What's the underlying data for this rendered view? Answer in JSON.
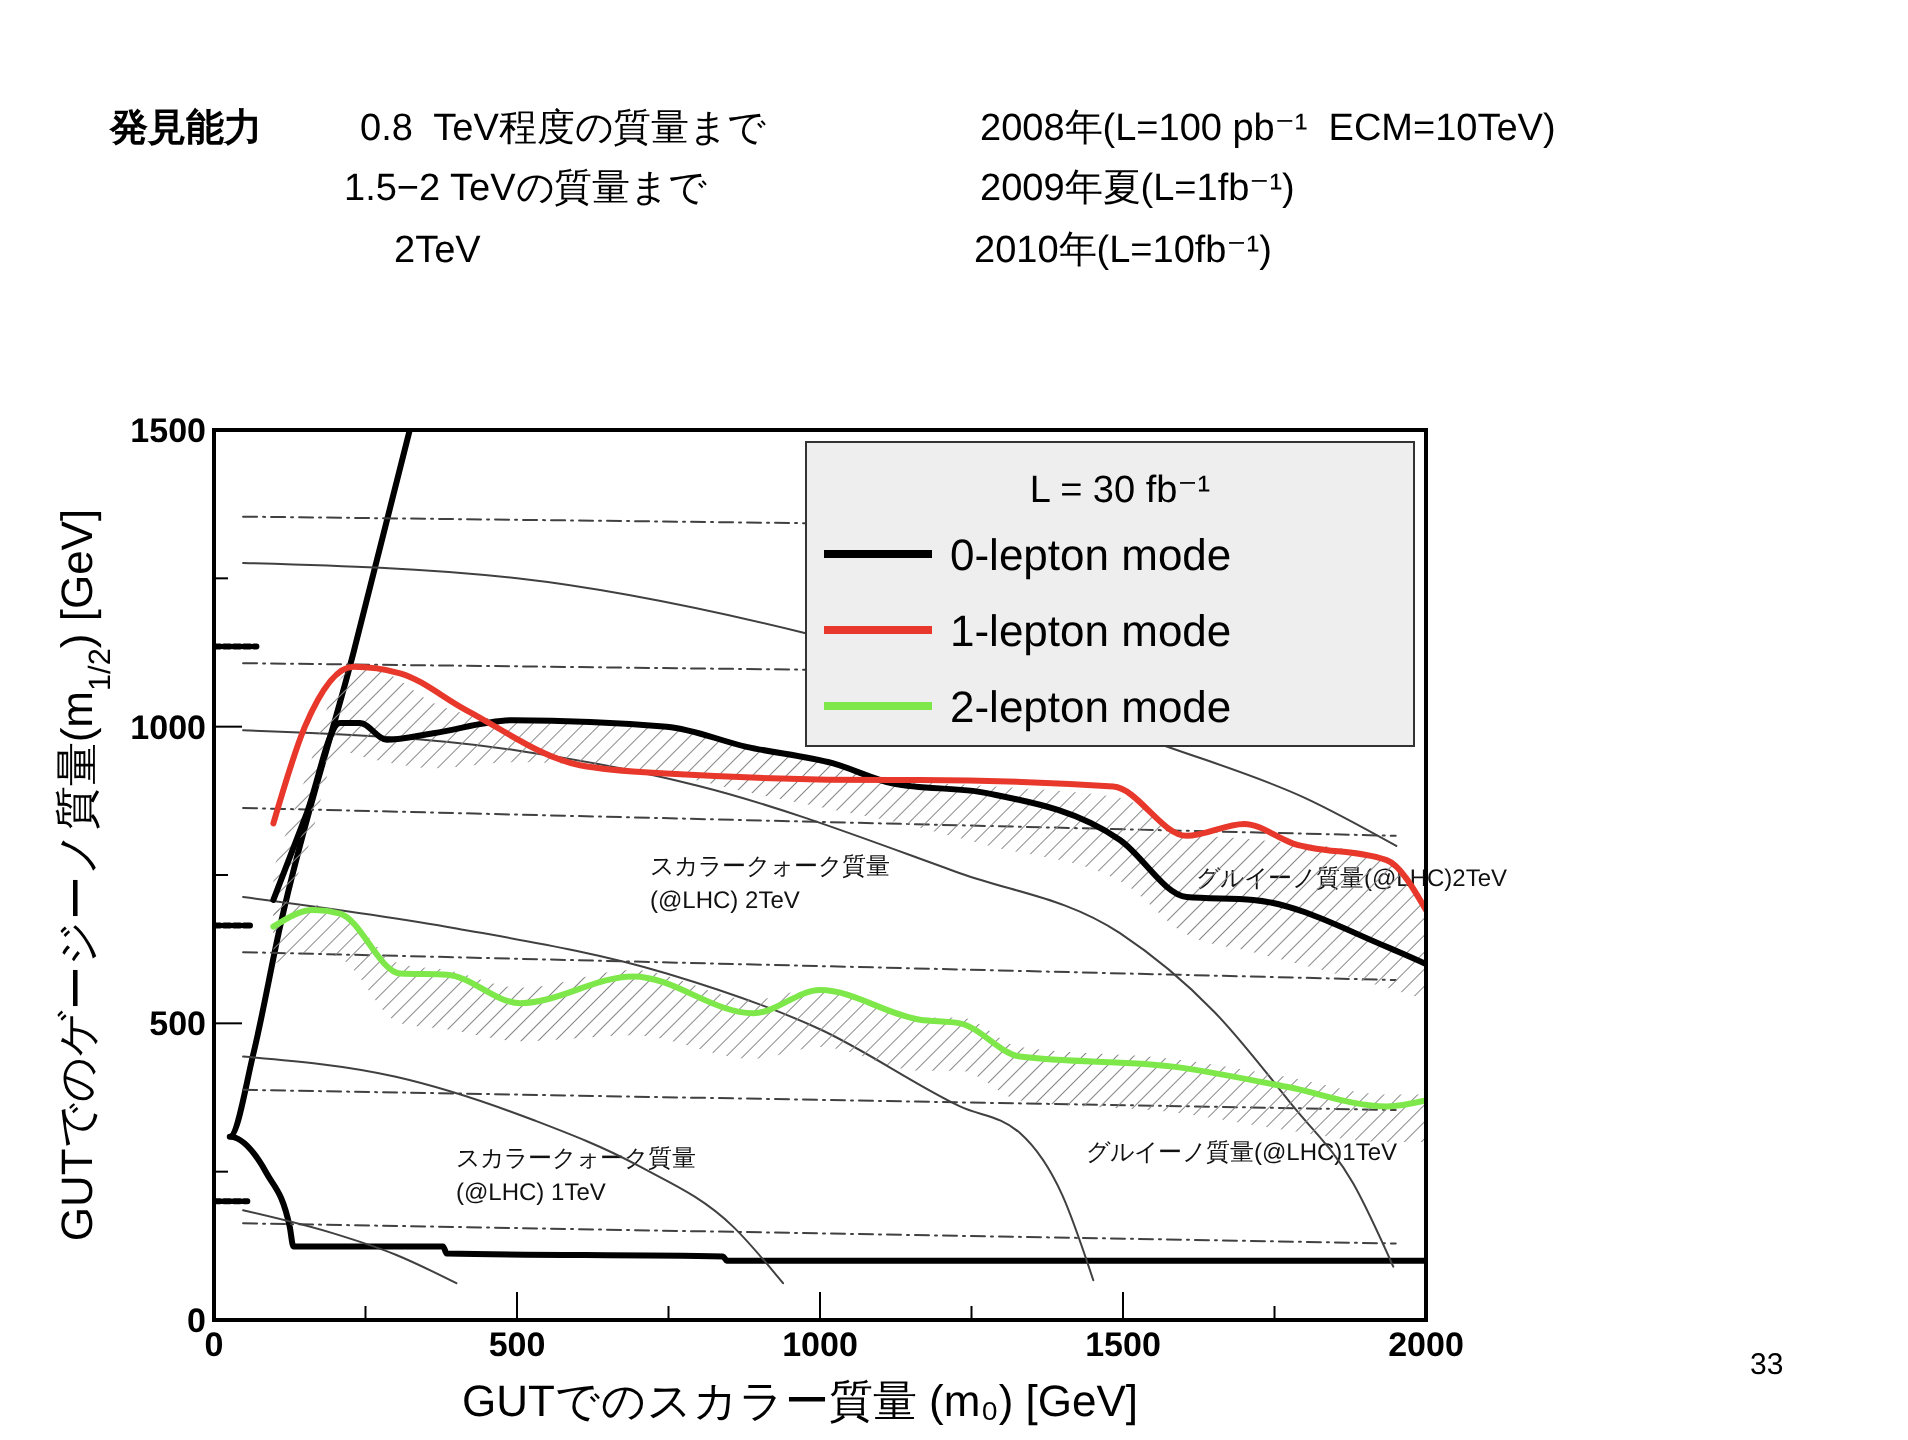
{
  "chart_data": {
    "type": "line",
    "title": "発見能力",
    "xlabel": "GUTでのスカラー質量 (m₀) [GeV]",
    "ylabel": "GUTでのゲージーノ質量(m$_{1/2}$) [GeV]",
    "legend_title": "L = 30 fb⁻¹",
    "legend": "top right",
    "xlim": [
      0,
      2000
    ],
    "ylim": [
      0,
      1500
    ],
    "xticks": [
      0,
      {
        "value": 250,
        "label": null
      },
      500,
      {
        "value": 750,
        "label": null
      },
      1000,
      {
        "value": 1250,
        "label": null
      },
      1500,
      {
        "value": 1750,
        "label": null
      },
      2000
    ],
    "yticks": [
      0,
      {
        "value": 250,
        "label": null
      },
      500,
      {
        "value": 750,
        "label": null
      },
      1000,
      {
        "value": 1250,
        "label": null
      },
      1500
    ],
    "series": [
      {
        "color": "#000000",
        "x": [
          323,
          230,
          109,
          65,
          26,
          87,
          125,
          131,
          378,
          384,
          840,
          846,
          2000
        ],
        "values": [
          1500,
          1124,
          663,
          449,
          309,
          247,
          157,
          124,
          124,
          112,
          107,
          100,
          100
        ]
      },
      {
        "color": "#404040",
        "x": [
          48,
          500,
          978,
          1571,
          1800,
          1951
        ],
        "values": [
          1276,
          1250,
          1157,
          967,
          880,
          799
        ]
      },
      {
        "color": "#404040",
        "x": [
          48,
          500,
          800,
          1231,
          1495,
          1650,
          1781,
          1880,
          1946
        ],
        "values": [
          994,
          960,
          900,
          753,
          652,
          520,
          360,
          230,
          90
        ]
      },
      {
        "color": "#404040",
        "x": [
          48,
          400,
          747,
          1000,
          1231,
          1330,
          1400,
          1451
        ],
        "values": [
          713,
          660,
          584,
          490,
          360,
          315,
          210,
          67
        ]
      },
      {
        "color": "#404040",
        "x": [
          48,
          300,
          527,
          700,
          857,
          939
        ],
        "values": [
          444,
          410,
          337,
          260,
          157,
          62
        ]
      },
      {
        "color": "#404040",
        "x": [
          48,
          197,
          300,
          400
        ],
        "values": [
          185,
          146,
          110,
          62
        ]
      },
      {
        "color": "#404040",
        "line_style": "dashed",
        "x": [
          48,
          975
        ],
        "values": [
          1354,
          1343
        ]
      },
      {
        "color": "#404040",
        "line_style": "dashed",
        "x": [
          48,
          975
        ],
        "values": [
          1107,
          1096
        ]
      },
      {
        "color": "#404040",
        "line_style": "dashed",
        "x": [
          48,
          1950
        ],
        "values": [
          863,
          816
        ]
      },
      {
        "color": "#404040",
        "line_style": "dashed",
        "x": [
          48,
          1950
        ],
        "values": [
          620,
          573
        ]
      },
      {
        "color": "#404040",
        "line_style": "dashed",
        "x": [
          48,
          1950
        ],
        "values": [
          388,
          354
        ]
      },
      {
        "color": "#404040",
        "line_style": "dashed",
        "x": [
          48,
          1950
        ],
        "values": [
          163,
          129
        ]
      },
      {
        "color": "#000000",
        "line_style": "dotted",
        "x": [
          0,
          70
        ],
        "values": [
          1135,
          1135
        ]
      },
      {
        "color": "#000000",
        "line_style": "dotted",
        "x": [
          0,
          60
        ],
        "values": [
          665,
          665
        ]
      },
      {
        "color": "#000000",
        "line_style": "dotted",
        "x": [
          0,
          55
        ],
        "values": [
          200,
          200
        ]
      },
      {
        "name": "0-lepton mode",
        "color": "#000000",
        "x": [
          98,
          153,
          208,
          241,
          285,
          362,
          494,
          747,
          879,
          1022,
          1121,
          1275,
          1495,
          1605,
          1715,
          1935,
          2000
        ],
        "values": [
          708,
          854,
          1006,
          1006,
          978,
          989,
          1011,
          1000,
          966,
          938,
          904,
          888,
          809,
          713,
          708,
          629,
          600
        ],
        "upper": [
          760,
          920,
          1080,
          1100,
          1090,
          1040,
          1010,
          1000,
          966,
          940,
          910,
          900,
          880,
          820,
          810,
          780,
          700
        ],
        "lower": [
          650,
          790,
          960,
          950,
          940,
          930,
          940,
          920,
          890,
          860,
          840,
          800,
          740,
          650,
          620,
          560,
          540
        ]
      },
      {
        "name": "1-lepton mode",
        "color": "#e8382c",
        "x": [
          98,
          150,
          230,
          307,
          416,
          604,
          746,
          1121,
          1165,
          1484,
          1605,
          1700,
          1781,
          1935,
          2000
        ],
        "values": [
          837,
          1000,
          1101,
          1090,
          1028,
          935,
          921,
          910,
          910,
          899,
          816,
          836,
          803,
          775,
          691
        ]
      },
      {
        "name": "2-lepton mode",
        "color": "#7ee84a",
        "x": [
          98,
          164,
          208,
          307,
          384,
          505,
          692,
          890,
          1000,
          1165,
          1231,
          1330,
          1583,
          1770,
          1935,
          2000
        ],
        "values": [
          663,
          691,
          685,
          584,
          582,
          534,
          579,
          517,
          556,
          506,
          500,
          444,
          427,
          393,
          360,
          370
        ],
        "upper": [
          690,
          700,
          690,
          600,
          590,
          560,
          590,
          540,
          560,
          510,
          510,
          460,
          440,
          410,
          380,
          380
        ],
        "lower": [
          600,
          620,
          610,
          500,
          490,
          470,
          480,
          440,
          460,
          420,
          420,
          370,
          350,
          320,
          300,
          300
        ]
      }
    ],
    "annotations": [
      "0.8  TeV程度の質量まで",
      "1.5−2 TeVの質量まで",
      "2TeV",
      "2008年(L=100 pb⁻¹  ECM=10TeV)",
      "2009年夏(L=1fb⁻¹)",
      "2010年(L=10fb⁻¹)",
      "33",
      "スカラークォーク質量\n(@LHC) 2TeV",
      "グルイーノ質量(@LHC)2TeV",
      "スカラークォーク質量\n(@LHC) 1TeV",
      "グルイーノ質量(@LHC)1TeV"
    ]
  }
}
